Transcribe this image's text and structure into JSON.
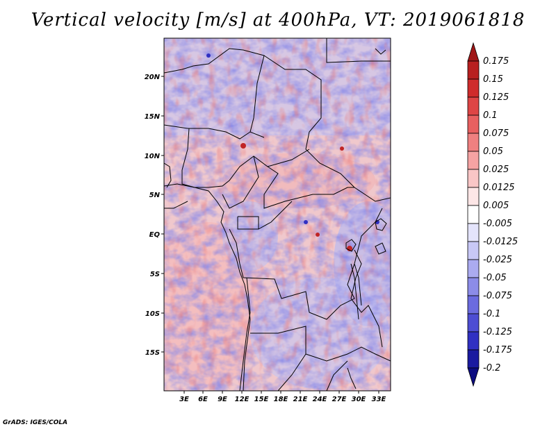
{
  "title": "Vertical velocity [m/s] at 400hPa, VT: 2019061818",
  "credit": "GrADS: IGES/COLA",
  "map": {
    "lon_range": [
      0,
      35
    ],
    "lat_range": [
      -19,
      24
    ],
    "lat_labels": [
      "20N",
      "15N",
      "10N",
      "5N",
      "EQ",
      "5S",
      "10S",
      "15S"
    ],
    "lon_labels": [
      "3E",
      "6E",
      "9E",
      "12E",
      "15E",
      "18E",
      "21E",
      "24E",
      "27E",
      "30E",
      "33E"
    ]
  },
  "colorbar": {
    "labels": [
      "0.175",
      "0.15",
      "0.125",
      "0.1",
      "0.075",
      "0.05",
      "0.025",
      "0.0125",
      "0.005",
      "-0.005",
      "-0.0125",
      "-0.025",
      "-0.05",
      "-0.075",
      "-0.1",
      "-0.125",
      "-0.175",
      "-0.2"
    ],
    "colors": [
      "#a01616",
      "#b82020",
      "#cf2c2c",
      "#de4545",
      "#e86060",
      "#ef8080",
      "#f5a3a3",
      "#f9c6c6",
      "#fde6e6",
      "#ffffff",
      "#e4e4fb",
      "#c8c8f6",
      "#ababf0",
      "#8c8ce8",
      "#6b6bdf",
      "#4d4dd3",
      "#3030c2",
      "#1a1aa0",
      "#0c0c80"
    ]
  }
}
